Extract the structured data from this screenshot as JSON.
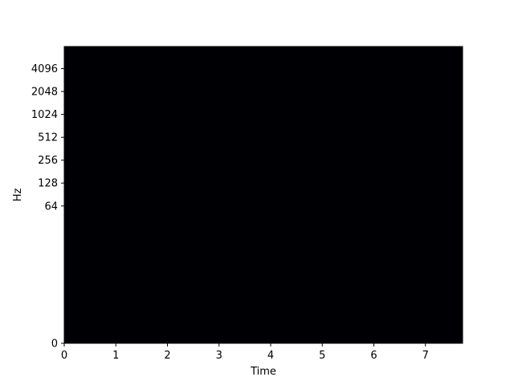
{
  "chart_data": {
    "type": "heatmap",
    "title": "",
    "xlabel": "Time",
    "ylabel": "Hz",
    "xlim": [
      0,
      7.72
    ],
    "x_ticks": [
      0,
      1,
      2,
      3,
      4,
      5,
      6,
      7
    ],
    "x_tick_labels": [
      "0",
      "1",
      "2",
      "3",
      "4",
      "5",
      "6",
      "7"
    ],
    "y_scale": "symlog",
    "y_ticks": [
      0,
      64,
      128,
      256,
      512,
      1024,
      2048,
      4096
    ],
    "y_tick_labels": [
      "0",
      "64",
      "128",
      "256",
      "512",
      "1024",
      "2048",
      "4096"
    ],
    "ylim": [
      0,
      8000
    ],
    "fill_color": "#000004",
    "grid": false,
    "legend": "none"
  }
}
